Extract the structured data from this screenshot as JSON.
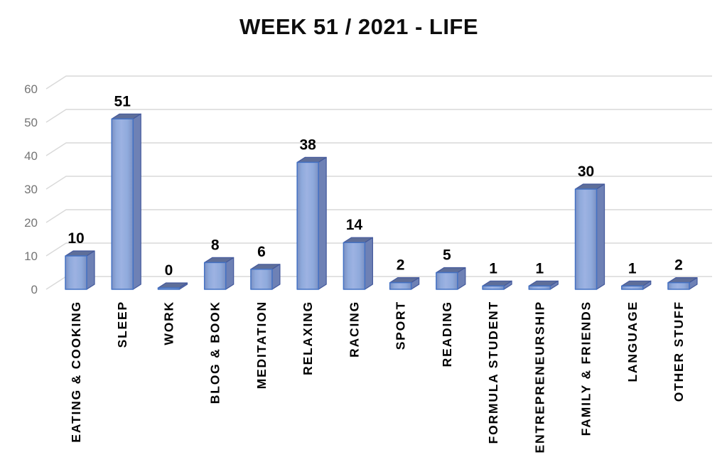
{
  "chart_data": {
    "type": "bar",
    "style": "3d-column",
    "title": "WEEK 51 / 2021 - LIFE",
    "categories": [
      "EATING & COOKING",
      "SLEEP",
      "WORK",
      "BLOG & BOOK",
      "MEDITATION",
      "RELAXING",
      "RACING",
      "SPORT",
      "READING",
      "FORMULA STUDENT",
      "ENTREPRENEURSHIP",
      "FAMILY & FRIENDS",
      "LANGUAGE",
      "OTHER STUFF"
    ],
    "values": [
      10,
      51,
      0,
      8,
      6,
      38,
      14,
      2,
      5,
      1,
      1,
      30,
      1,
      2
    ],
    "data_labels": [
      "10",
      "51",
      "0",
      "8",
      "6",
      "38",
      "14",
      "2",
      "5",
      "1",
      "1",
      "30",
      "1",
      "2"
    ],
    "xlabel": "",
    "ylabel": "",
    "ylim": [
      0,
      60
    ],
    "yticks": [
      0,
      10,
      20,
      30,
      40,
      50,
      60
    ],
    "grid": true,
    "legend": false,
    "colors": {
      "bar_front_light": "#9DB2E2",
      "bar_front_mid": "#8FAADC",
      "bar_front_dark": "#7B90C2",
      "bar_side": "#6E81B5",
      "bar_top": "#5E6E99",
      "bar_border": "#4472C4",
      "bar_border_dark": "#44599C",
      "gridline": "#D9D9D9",
      "axis_tick_label": "#757575",
      "data_label": "#000000",
      "title": "#0d0d0d",
      "background": "#FFFFFF"
    }
  }
}
